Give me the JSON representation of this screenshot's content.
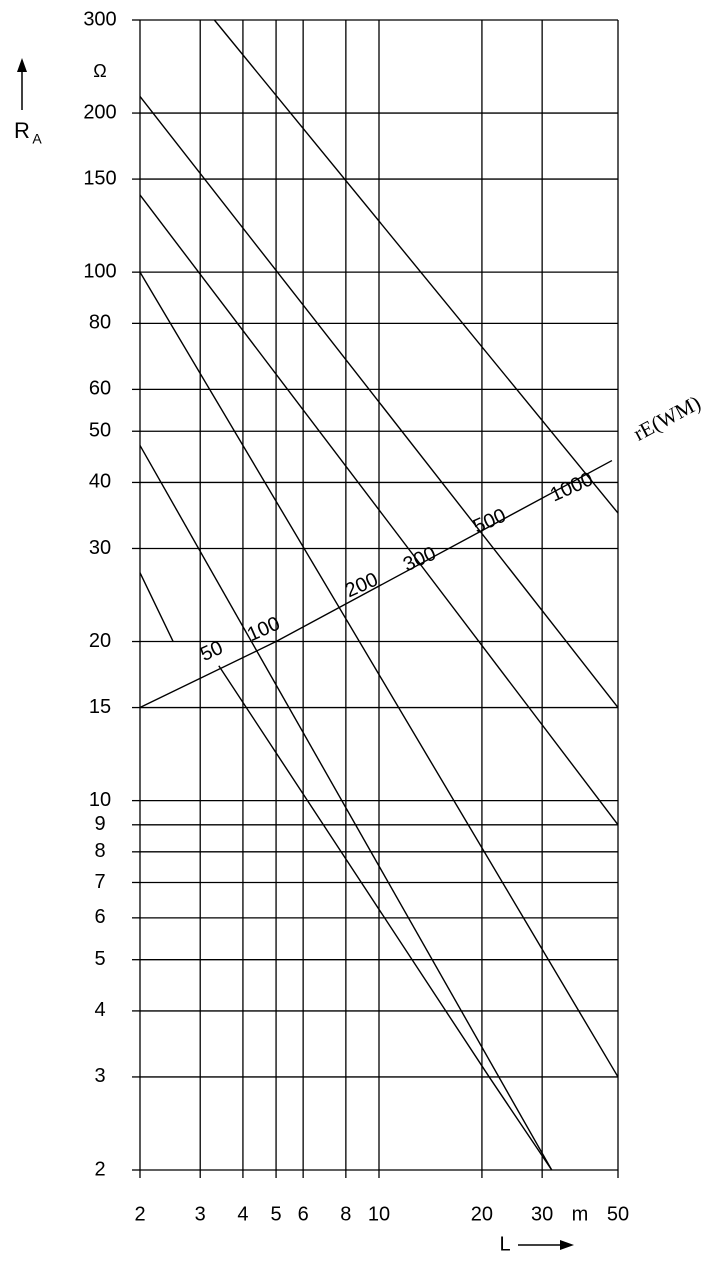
{
  "chart_data": {
    "type": "line",
    "y_label": "R",
    "y_label_sub": "A",
    "y_unit": "Ω",
    "x_label": "L",
    "x_unit": "m",
    "xscale": "log",
    "yscale": "log",
    "grid": true,
    "color": "#000000",
    "xlim": [
      2,
      50
    ],
    "ylim": [
      2,
      300
    ],
    "xticks": [
      2,
      3,
      4,
      5,
      6,
      8,
      10,
      20,
      30,
      50
    ],
    "yticks": [
      2,
      3,
      4,
      5,
      6,
      7,
      8,
      9,
      10,
      15,
      20,
      30,
      40,
      50,
      60,
      80,
      100,
      150,
      200,
      300
    ],
    "series": [
      {
        "x": [
          3.3,
          50
        ],
        "values": [
          300,
          35
        ]
      },
      {
        "x": [
          2,
          50
        ],
        "values": [
          215,
          15
        ]
      },
      {
        "x": [
          2,
          50
        ],
        "values": [
          140,
          9
        ]
      },
      {
        "x": [
          2,
          50
        ],
        "values": [
          100,
          3
        ]
      },
      {
        "x": [
          2,
          32
        ],
        "values": [
          47,
          2
        ]
      },
      {
        "x": [
          2,
          2.5
        ],
        "values": [
          27,
          20
        ]
      },
      {
        "x": [
          3.4,
          21,
          32
        ],
        "values": [
          18,
          3,
          2
        ]
      },
      {
        "x": [
          2,
          5,
          48
        ],
        "values": [
          15,
          20,
          44
        ]
      }
    ],
    "annotations": [
      "50",
      "100",
      "200",
      "300",
      "500",
      "1000",
      "rE(WM)"
    ]
  }
}
